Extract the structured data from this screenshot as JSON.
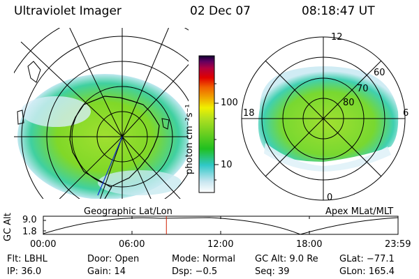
{
  "header": {
    "instrument": "Ultraviolet Imager",
    "date": "02 Dec 07",
    "time": "08:18:47 UT"
  },
  "left_map": {
    "caption": "Geographic Lat/Lon"
  },
  "right_map": {
    "caption": "Apex MLat/MLT",
    "mlt_labels": [
      "12",
      "18",
      "6",
      "0"
    ],
    "lat_labels": [
      "60",
      "70",
      "80"
    ]
  },
  "colorbar": {
    "unit_label": "photon cm⁻²s⁻¹",
    "ticks": [
      "100",
      "10"
    ],
    "colors": [
      "#ffffff",
      "#c8e6f0",
      "#30c8c8",
      "#20c020",
      "#70d020",
      "#b0e020",
      "#f0f000",
      "#f0a000",
      "#f06000",
      "#e00000",
      "#b00040",
      "#600060",
      "#100030"
    ]
  },
  "timeline": {
    "ylabel": "GC Alt",
    "y_ticks": [
      "9.0",
      "1.8"
    ],
    "x_ticks": [
      "00:00",
      "06:00",
      "12:00",
      "18:00",
      "23:59"
    ],
    "marker_fraction": 0.347
  },
  "info": {
    "row1": [
      {
        "label": "Flt:",
        "value": "LBHL"
      },
      {
        "label": "Door:",
        "value": "Open"
      },
      {
        "label": "Mode:",
        "value": "Normal"
      },
      {
        "label": "GC Alt:",
        "value": "9.0 Re"
      },
      {
        "label": "GLat:",
        "value": "−77.1"
      }
    ],
    "row2": [
      {
        "label": "IP:",
        "value": "36.0"
      },
      {
        "label": "Gain:",
        "value": "14"
      },
      {
        "label": "Dsp:",
        "value": "−0.5"
      },
      {
        "label": "Seq:",
        "value": "39"
      },
      {
        "label": "GLon:",
        "value": "165.4"
      }
    ]
  }
}
